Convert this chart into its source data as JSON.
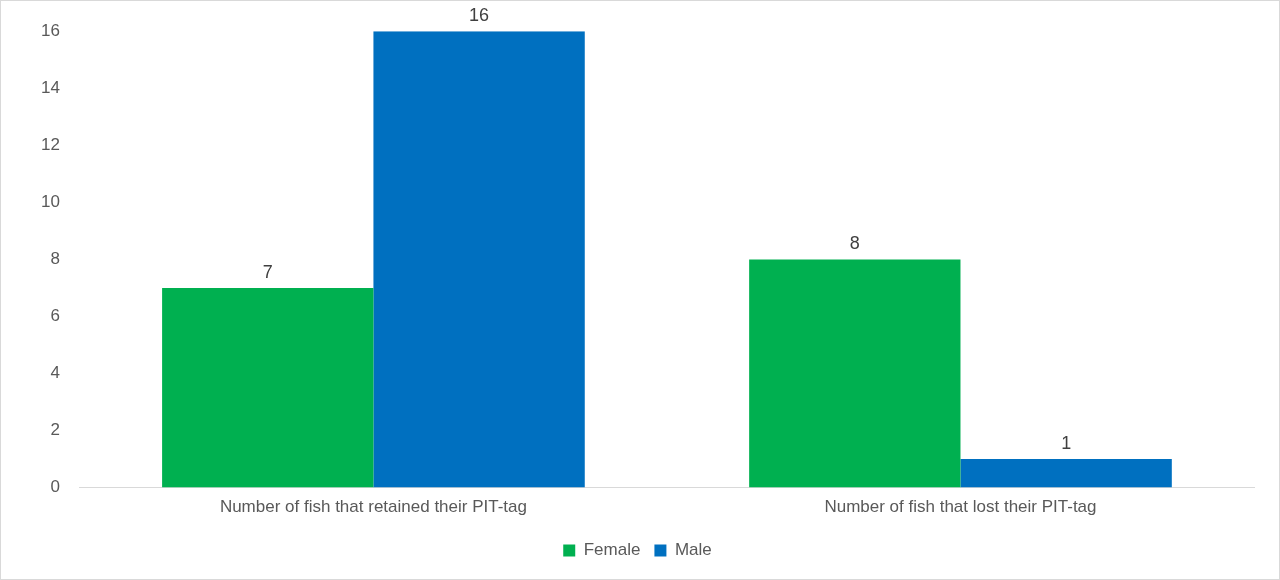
{
  "chart_data": {
    "type": "bar",
    "categories": [
      "Number of fish that retained their PIT-tag",
      "Number of fish that lost their PIT-tag"
    ],
    "series": [
      {
        "name": "Female",
        "color": "#00b050",
        "values": [
          7,
          8
        ]
      },
      {
        "name": "Male",
        "color": "#0070c0",
        "values": [
          16,
          1
        ]
      }
    ],
    "ylim": [
      0,
      16
    ],
    "yticks": [
      0,
      2,
      4,
      6,
      8,
      10,
      12,
      14,
      16
    ],
    "grid": false,
    "legend": "bottom",
    "data_labels": true
  }
}
